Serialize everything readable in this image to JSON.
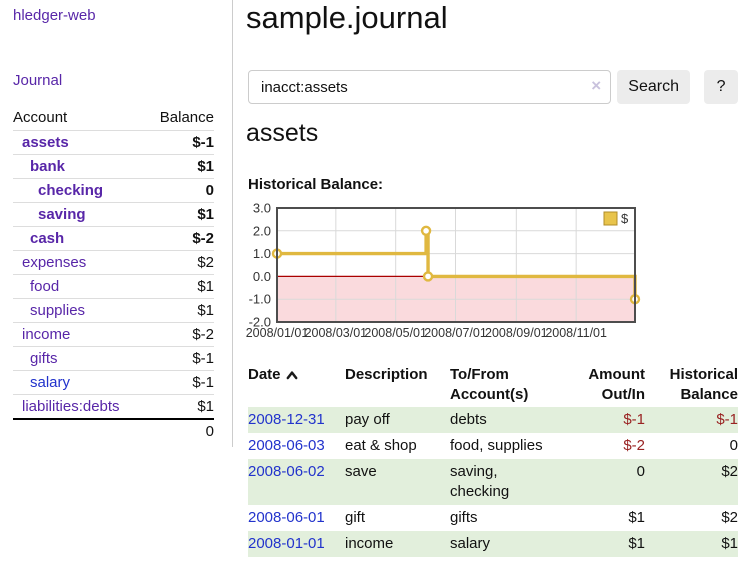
{
  "app": {
    "brand": "hledger-web",
    "nav_journal": "Journal"
  },
  "header": {
    "title": "sample.journal"
  },
  "search": {
    "value": "inacct:assets",
    "clear_icon": "×",
    "button": "Search",
    "help_button": "?"
  },
  "account_page": {
    "heading": "assets",
    "chart_label": "Historical Balance:"
  },
  "sidebar": {
    "accounts_table": {
      "headers": [
        "Account",
        "Balance"
      ],
      "rows": [
        {
          "account": "assets",
          "indent": 0,
          "bold": true,
          "balance": "$-1",
          "balance_tone": "neg-strong",
          "link_tone": "purple"
        },
        {
          "account": "bank",
          "indent": 1,
          "bold": true,
          "balance": "$1",
          "balance_tone": "normal",
          "link_tone": "purple"
        },
        {
          "account": "checking",
          "indent": 2,
          "bold": true,
          "balance": "0",
          "balance_tone": "normal",
          "link_tone": "purple"
        },
        {
          "account": "saving",
          "indent": 2,
          "bold": true,
          "balance": "$1",
          "balance_tone": "normal",
          "link_tone": "purple"
        },
        {
          "account": "cash",
          "indent": 1,
          "bold": true,
          "balance": "$-2",
          "balance_tone": "neg-strong",
          "link_tone": "purple"
        },
        {
          "account": "expenses",
          "indent": 0,
          "bold": false,
          "balance": "$2",
          "balance_tone": "normal",
          "link_tone": "purple"
        },
        {
          "account": "food",
          "indent": 1,
          "bold": false,
          "balance": "$1",
          "balance_tone": "normal",
          "link_tone": "purple"
        },
        {
          "account": "supplies",
          "indent": 1,
          "bold": false,
          "balance": "$1",
          "balance_tone": "normal",
          "link_tone": "purple"
        },
        {
          "account": "income",
          "indent": 0,
          "bold": false,
          "balance": "$-2",
          "balance_tone": "neg-soft",
          "link_tone": "purple"
        },
        {
          "account": "gifts",
          "indent": 1,
          "bold": false,
          "balance": "$-1",
          "balance_tone": "neg-soft",
          "link_tone": "purple"
        },
        {
          "account": "salary",
          "indent": 1,
          "bold": false,
          "balance": "$-1",
          "balance_tone": "neg-soft",
          "link_tone": "blue"
        },
        {
          "account": "liabilities:debts",
          "indent": 0,
          "bold": false,
          "balance": "$1",
          "balance_tone": "normal",
          "link_tone": "purple"
        }
      ],
      "total": "0"
    }
  },
  "chart_data": {
    "type": "line",
    "title": "Historical Balance",
    "step": true,
    "series": [
      {
        "name": "$",
        "points": [
          [
            "2008-01-01",
            1
          ],
          [
            "2008-06-01",
            2
          ],
          [
            "2008-06-03",
            0
          ],
          [
            "2008-12-31",
            -1
          ]
        ]
      }
    ],
    "x_range": [
      "2008-01-01",
      "2008-12-31"
    ],
    "ylim": [
      -2,
      3
    ],
    "y_ticks": [
      3.0,
      2.0,
      1.0,
      0.0,
      -1.0,
      -2.0
    ],
    "x_ticks": [
      "2008/01/01",
      "2008/03/01",
      "2008/05/01",
      "2008/07/01",
      "2008/09/01",
      "2008/11/01"
    ],
    "legend": {
      "label": "$",
      "position": "top-right",
      "swatch_color": "#e8c44c"
    },
    "grid": true,
    "line_color": "#e0b840",
    "zero_line_color": "#aa0000",
    "negative_region_fill": "#fadadd"
  },
  "register_table": {
    "headers": {
      "date": "Date",
      "description": "Description",
      "accounts": "To/From Account(s)",
      "amount": "Amount Out/In",
      "balance": "Historical Balance"
    },
    "rows": [
      {
        "date": "2008-12-31",
        "description": "pay off",
        "accounts": "debts",
        "amount": "$-1",
        "balance": "$-1"
      },
      {
        "date": "2008-06-03",
        "description": "eat & shop",
        "accounts": "food, supplies",
        "amount": "$-2",
        "balance": "0"
      },
      {
        "date": "2008-06-02",
        "description": "save",
        "accounts": "saving, checking",
        "amount": "0",
        "balance": "$2"
      },
      {
        "date": "2008-06-01",
        "description": "gift",
        "accounts": "gifts",
        "amount": "$1",
        "balance": "$2"
      },
      {
        "date": "2008-01-01",
        "description": "income",
        "accounts": "salary",
        "amount": "$1",
        "balance": "$1"
      }
    ]
  },
  "colors": {
    "link_purple": "#5826a8",
    "link_blue": "#2233cc",
    "negative_strong": "#990d0d",
    "negative_soft": "#c47e7e",
    "register_negative": "#992222",
    "row_green": "#e2efdc",
    "button_bg": "#ececec",
    "chart_line": "#e0b840",
    "chart_zero_line": "#aa0000",
    "chart_negative_fill": "#fadadd"
  }
}
